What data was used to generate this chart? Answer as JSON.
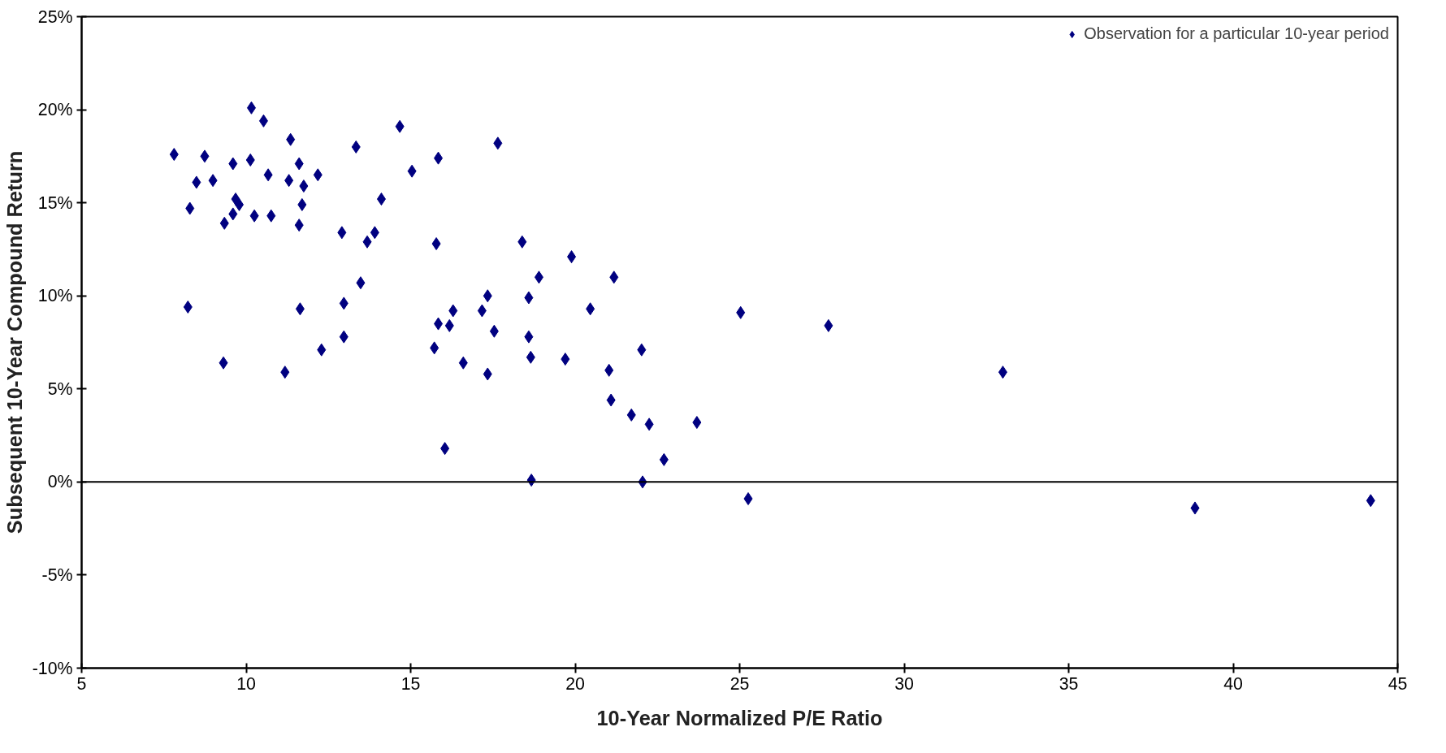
{
  "chart_data": {
    "type": "scatter",
    "xlabel": "10-Year Normalized P/E Ratio",
    "ylabel": "Subsequent 10-Year Compound Return",
    "xlim": [
      5,
      45
    ],
    "xticks": [
      5,
      10,
      15,
      20,
      25,
      30,
      35,
      40,
      45
    ],
    "ylim": [
      -10,
      25
    ],
    "yticks": [
      {
        "value": -10,
        "label": "-10%"
      },
      {
        "value": -5,
        "label": "-5%"
      },
      {
        "value": 0,
        "label": "0%"
      },
      {
        "value": 5,
        "label": "5%"
      },
      {
        "value": 10,
        "label": "10%"
      },
      {
        "value": 15,
        "label": "15%"
      },
      {
        "value": 20,
        "label": "20%"
      },
      {
        "value": 25,
        "label": "25%"
      }
    ],
    "ref_lines": [
      {
        "axis": "y",
        "value": 0
      }
    ],
    "grid": false,
    "legend": "top right",
    "marker": "diamond",
    "series": [
      {
        "name": "Observation for a particular 10-year period",
        "color": "#000080",
        "x": [
          7.81,
          8.29,
          8.23,
          8.49,
          8.74,
          8.99,
          9.34,
          9.31,
          9.6,
          9.6,
          9.68,
          9.79,
          10.13,
          10.16,
          10.25,
          10.53,
          10.67,
          10.76,
          11.18,
          11.3,
          11.35,
          11.61,
          11.61,
          11.64,
          11.7,
          11.75,
          12.18,
          12.29,
          12.91,
          12.97,
          12.97,
          13.34,
          13.48,
          13.68,
          13.91,
          14.11,
          14.67,
          15.04,
          15.72,
          15.78,
          15.84,
          15.84,
          16.04,
          16.18,
          16.29,
          16.6,
          17.17,
          17.34,
          17.34,
          17.54,
          17.65,
          18.39,
          18.59,
          18.59,
          18.65,
          18.67,
          18.9,
          19.7,
          19.89,
          20.46,
          21.03,
          21.09,
          21.18,
          21.71,
          22.02,
          22.05,
          22.25,
          22.7,
          23.7,
          25.03,
          25.26,
          27.7,
          33.0,
          38.84,
          44.18
        ],
        "values": [
          17.6,
          14.7,
          9.4,
          16.1,
          17.5,
          16.2,
          13.9,
          6.4,
          17.1,
          14.4,
          15.2,
          14.9,
          17.3,
          20.1,
          14.3,
          19.4,
          16.5,
          14.3,
          5.9,
          16.2,
          18.4,
          17.1,
          13.8,
          9.3,
          14.9,
          15.9,
          16.5,
          7.1,
          13.4,
          9.6,
          7.8,
          18.0,
          10.7,
          12.9,
          13.4,
          15.2,
          19.1,
          16.7,
          7.2,
          12.8,
          17.4,
          8.5,
          1.8,
          8.4,
          9.2,
          6.4,
          9.2,
          10.0,
          5.8,
          8.1,
          18.2,
          12.9,
          9.9,
          7.8,
          6.7,
          0.1,
          11.0,
          6.6,
          12.1,
          9.3,
          6.0,
          4.4,
          11.0,
          3.6,
          7.1,
          0.0,
          3.1,
          1.2,
          3.2,
          9.1,
          -0.9,
          8.4,
          5.9,
          -1.4,
          -1.0
        ]
      }
    ]
  }
}
